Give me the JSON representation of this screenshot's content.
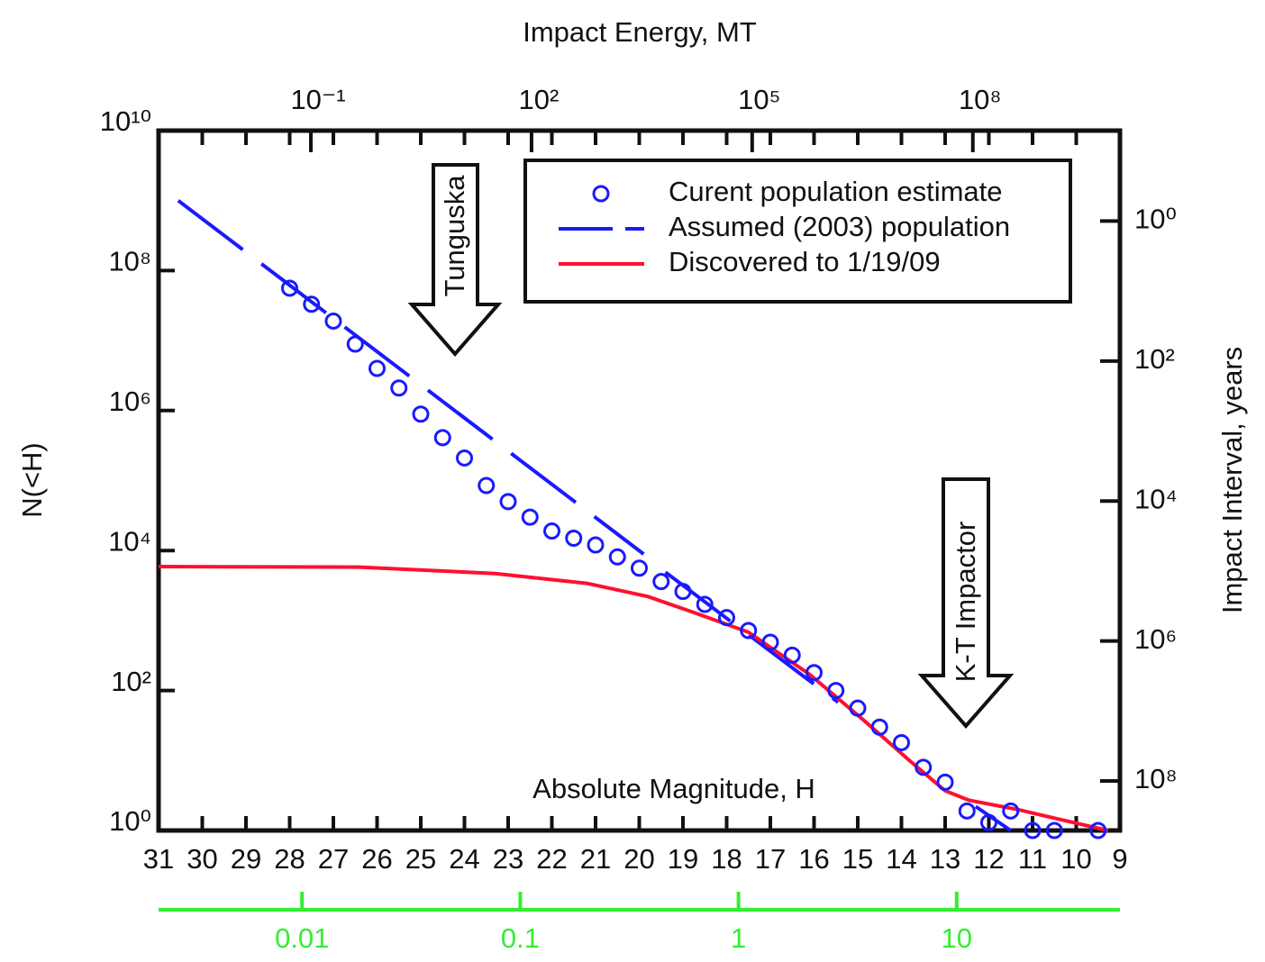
{
  "chart_data": {
    "type": "line",
    "x_label": "Absolute Magnitude, H",
    "y_label": "N(<H)",
    "x2_label": "Impact Energy, MT",
    "y2_label": "Impact Interval, years",
    "xlim": [
      31,
      9
    ],
    "xticks": [
      31,
      30,
      29,
      28,
      27,
      26,
      25,
      24,
      23,
      22,
      21,
      20,
      19,
      18,
      17,
      16,
      15,
      14,
      13,
      12,
      11,
      10,
      9
    ],
    "ylim": [
      1,
      10000000000
    ],
    "yscale": "log",
    "yticks": [
      {
        "value": 1,
        "label": "10⁰"
      },
      {
        "value": 100,
        "label": "10²"
      },
      {
        "value": 10000,
        "label": "10⁴"
      },
      {
        "value": 1000000,
        "label": "10⁶"
      },
      {
        "value": 100000000,
        "label": "10⁸"
      },
      {
        "value": 10000000000,
        "label": "10¹⁰"
      }
    ],
    "x2lim": [
      0.00085,
      10000000000
    ],
    "x2scale": "log",
    "x2ticks": [
      {
        "value": 0.1,
        "label": "10⁻¹"
      },
      {
        "value": 100,
        "label": "10²"
      },
      {
        "value": 100000,
        "label": "10⁵"
      },
      {
        "value": 100000000,
        "label": "10⁸"
      }
    ],
    "y2lim": [
      510000000,
      0.051
    ],
    "y2scale": "log",
    "y2ticks": [
      {
        "value": 1,
        "label": "10⁰"
      },
      {
        "value": 100,
        "label": "10²"
      },
      {
        "value": 10000,
        "label": "10⁴"
      },
      {
        "value": 1000000,
        "label": "10⁶"
      },
      {
        "value": 100000000,
        "label": "10⁸"
      }
    ],
    "x3lim": [
      0.0022,
      56
    ],
    "x3scale": "log",
    "x3ticks": [
      0.01,
      0.1,
      1,
      10
    ],
    "x3color": "#33ee33",
    "legend": "upper right",
    "annotations": [
      "Tunguska",
      "K-T Impactor"
    ],
    "series": [
      {
        "name": "Curent population estimate",
        "color": "#1a1aff",
        "style": "markers",
        "x": [
          28,
          27.5,
          27,
          26.5,
          26,
          25.5,
          25,
          24.5,
          24,
          23.5,
          23,
          22.5,
          22,
          21.5,
          21,
          20.5,
          20,
          19.5,
          19,
          18.5,
          18,
          17.5,
          17,
          16.5,
          16,
          15.5,
          15,
          14.5,
          14,
          13.5,
          13,
          12.5,
          12,
          11.5,
          11,
          10.5,
          9.5
        ],
        "values": [
          56000000,
          33000000,
          19000000,
          8900000,
          4000000,
          2100000,
          890000,
          410000,
          210000,
          85000,
          50000,
          30000,
          19000,
          15000,
          12000,
          8100,
          5600,
          3600,
          2600,
          1700,
          1100,
          720,
          490,
          320,
          180,
          100,
          56,
          30,
          18,
          8,
          4.9,
          1.9,
          1.3,
          1.9,
          1,
          1,
          1
        ]
      },
      {
        "name": "Assumed (2003) population",
        "color": "#1a1aff",
        "style": "dashed",
        "x": [
          30.55,
          19.9,
          null,
          19.4,
          15.45,
          null,
          12.3,
          11.5
        ],
        "values": [
          1000000000,
          8900,
          null,
          4900,
          68,
          null,
          2.2,
          1
        ]
      },
      {
        "name": "Discovered to 1/19/09",
        "color": "#ff1030",
        "style": "solid",
        "x": [
          31,
          26.4,
          23.3,
          21.2,
          19.8,
          18.75,
          17.5,
          16.1,
          14.85,
          13.8,
          13,
          12.45,
          11.35,
          10.3,
          9.27
        ],
        "values": [
          5900,
          5800,
          4700,
          3400,
          2200,
          1300,
          680,
          170,
          37,
          9.8,
          3.7,
          2.7,
          2,
          1.4,
          1
        ]
      }
    ]
  }
}
